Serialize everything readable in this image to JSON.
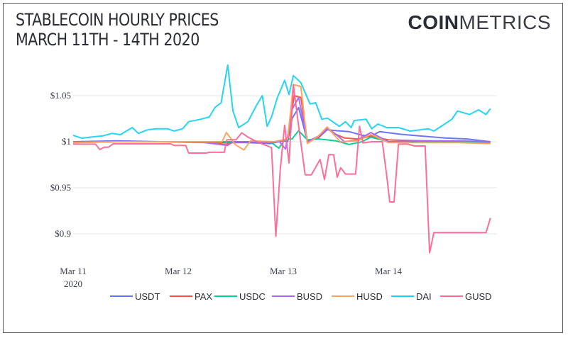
{
  "header": {
    "title_line1": "STABLECOIN HOURLY PRICES",
    "title_line2": "MARCH 11TH - 14TH 2020",
    "logo_bold": "COIN",
    "logo_light": "METRICS"
  },
  "chart_data": {
    "type": "line",
    "title": "STABLECOIN HOURLY PRICES MARCH 11TH - 14TH 2020",
    "xlabel": "",
    "ylabel": "",
    "x_unit": "hours since Mar 11 2020 00:00",
    "xlim": [
      0,
      96
    ],
    "ylim": [
      0.872,
      1.09
    ],
    "grid": true,
    "legend_placement": "bottom",
    "x_ticks": [
      {
        "value": 0,
        "label": "Mar 11",
        "sublabel": "2020"
      },
      {
        "value": 24,
        "label": "Mar 12"
      },
      {
        "value": 48,
        "label": "Mar 13"
      },
      {
        "value": 72,
        "label": "Mar 14"
      }
    ],
    "y_ticks": [
      {
        "value": 1.05,
        "label": "$1.05"
      },
      {
        "value": 1.0,
        "label": "$1"
      },
      {
        "value": 0.95,
        "label": "$0.95"
      },
      {
        "value": 0.9,
        "label": "$0.9"
      }
    ],
    "series": [
      {
        "name": "USDT",
        "color": "#636efa",
        "points": [
          [
            0,
            1.0
          ],
          [
            10,
            1.001
          ],
          [
            20,
            1.0
          ],
          [
            30,
            1.0
          ],
          [
            35,
            0.999
          ],
          [
            40,
            0.999
          ],
          [
            45,
            0.998
          ],
          [
            48,
            1.001
          ],
          [
            49,
            1.0
          ],
          [
            50,
            1.025
          ],
          [
            51.5,
            1.037
          ],
          [
            53.5,
            1.001
          ],
          [
            56,
            1.004
          ],
          [
            58,
            1.013
          ],
          [
            60,
            1.012
          ],
          [
            63,
            1.011
          ],
          [
            66,
            1.007
          ],
          [
            68,
            1.006
          ],
          [
            70,
            1.011
          ],
          [
            75,
            1.008
          ],
          [
            80,
            1.006
          ],
          [
            85,
            1.004
          ],
          [
            90,
            1.003
          ],
          [
            95.3,
            1.0
          ]
        ]
      },
      {
        "name": "PAX",
        "color": "#ef553b",
        "points": [
          [
            0,
            0.999
          ],
          [
            10,
            1.0
          ],
          [
            20,
            1.0
          ],
          [
            30,
            1.0
          ],
          [
            35,
            0.997
          ],
          [
            36,
            0.999
          ],
          [
            40,
            1.0
          ],
          [
            46,
            1.0
          ],
          [
            49,
            1.003
          ],
          [
            50.5,
            1.05
          ],
          [
            52,
            1.048
          ],
          [
            53.5,
            1.0
          ],
          [
            56,
            1.005
          ],
          [
            58,
            1.015
          ],
          [
            60,
            1.008
          ],
          [
            62,
            1.004
          ],
          [
            65,
            1.003
          ],
          [
            68,
            1.006
          ],
          [
            72,
            1.002
          ],
          [
            80,
            1.001
          ],
          [
            88,
            1.0
          ],
          [
            95.3,
            0.999
          ]
        ]
      },
      {
        "name": "USDC",
        "color": "#00cc96",
        "points": [
          [
            0,
            1.0
          ],
          [
            10,
            1.0
          ],
          [
            20,
            1.0
          ],
          [
            30,
            1.0
          ],
          [
            35,
            1.0
          ],
          [
            40,
            1.0
          ],
          [
            45,
            1.0
          ],
          [
            47,
            0.993
          ],
          [
            48.5,
            1.003
          ],
          [
            50,
            1.003
          ],
          [
            51.5,
            1.012
          ],
          [
            53.5,
            1.002
          ],
          [
            56,
            1.003
          ],
          [
            58,
            1.002
          ],
          [
            60,
            1.001
          ],
          [
            63,
            0.997
          ],
          [
            66,
            1.0
          ],
          [
            68,
            1.005
          ],
          [
            72,
            1.0
          ],
          [
            80,
            1.0
          ],
          [
            88,
            1.0
          ],
          [
            95.3,
            1.0
          ]
        ]
      },
      {
        "name": "BUSD",
        "color": "#ab63fa",
        "points": [
          [
            0,
            1.0
          ],
          [
            10,
            1.0
          ],
          [
            20,
            1.0
          ],
          [
            30,
            0.999
          ],
          [
            35.3,
            0.996
          ],
          [
            36.5,
            1.0
          ],
          [
            40,
            1.0
          ],
          [
            45,
            0.999
          ],
          [
            47,
            1.001
          ],
          [
            48.5,
            0.992
          ],
          [
            50,
            1.035
          ],
          [
            51.5,
            1.048
          ],
          [
            53.5,
            1.0
          ],
          [
            56,
            1.006
          ],
          [
            58,
            1.014
          ],
          [
            60,
            1.008
          ],
          [
            62,
            1.0
          ],
          [
            65,
            1.002
          ],
          [
            68,
            1.01
          ],
          [
            72,
            1.0
          ],
          [
            80,
            1.001
          ],
          [
            88,
            1.001
          ],
          [
            95.3,
            1.0
          ]
        ]
      },
      {
        "name": "HUSD",
        "color": "#ffa15a",
        "points": [
          [
            0,
            0.999
          ],
          [
            10,
            1.0
          ],
          [
            20,
            1.0
          ],
          [
            30,
            1.0
          ],
          [
            34,
            1.0
          ],
          [
            35,
            1.01
          ],
          [
            37,
            0.997
          ],
          [
            39,
            0.991
          ],
          [
            40.5,
            1.001
          ],
          [
            46,
            1.0
          ],
          [
            49,
            1.003
          ],
          [
            50.3,
            1.062
          ],
          [
            52,
            1.06
          ],
          [
            53.5,
            0.998
          ],
          [
            56,
            1.006
          ],
          [
            58,
            1.016
          ],
          [
            61,
            1.0
          ],
          [
            65,
            1.001
          ],
          [
            68,
            1.008
          ],
          [
            72,
            0.999
          ],
          [
            80,
            0.999
          ],
          [
            88,
            0.999
          ],
          [
            95.3,
            0.998
          ]
        ]
      },
      {
        "name": "DAI",
        "color": "#19d3f3",
        "points": [
          [
            0,
            1.0069
          ],
          [
            2,
            1.0038
          ],
          [
            4.1,
            1.0051
          ],
          [
            6.8,
            1.0064
          ],
          [
            8.8,
            1.009
          ],
          [
            10.8,
            1.0077
          ],
          [
            13.5,
            1.0154
          ],
          [
            14.9,
            1.009
          ],
          [
            16.9,
            1.0128
          ],
          [
            18.9,
            1.0141
          ],
          [
            21.6,
            1.0141
          ],
          [
            23,
            1.0115
          ],
          [
            25,
            1.0141
          ],
          [
            26.4,
            1.0218
          ],
          [
            29.1,
            1.0244
          ],
          [
            31.1,
            1.0269
          ],
          [
            32.4,
            1.0372
          ],
          [
            33.8,
            1.0423
          ],
          [
            35.3,
            1.0833
          ],
          [
            36.5,
            1.0333
          ],
          [
            37.8,
            1.0154
          ],
          [
            39.9,
            1.0218
          ],
          [
            41.9,
            1.0397
          ],
          [
            43.2,
            1.05
          ],
          [
            44.3,
            1.0167
          ],
          [
            45.3,
            1.0269
          ],
          [
            46.6,
            1.0474
          ],
          [
            48.3,
            1.0667
          ],
          [
            49.3,
            1.0513
          ],
          [
            50.3,
            1.0718
          ],
          [
            52,
            1.0641
          ],
          [
            54.1,
            1.041
          ],
          [
            55.4,
            1.0423
          ],
          [
            56.8,
            1.0244
          ],
          [
            58.1,
            1.0256
          ],
          [
            60.8,
            1.0167
          ],
          [
            62.2,
            1.0218
          ],
          [
            63.5,
            1.0154
          ],
          [
            64.2,
            1.0231
          ],
          [
            66.9,
            1.0244
          ],
          [
            68.2,
            1.0141
          ],
          [
            69.6,
            1.0192
          ],
          [
            71.6,
            1.0154
          ],
          [
            74.3,
            1.0154
          ],
          [
            77,
            1.0115
          ],
          [
            81.1,
            1.0141
          ],
          [
            82.4,
            1.0115
          ],
          [
            86.5,
            1.0244
          ],
          [
            87.8,
            1.0333
          ],
          [
            90.5,
            1.0295
          ],
          [
            92.6,
            1.0346
          ],
          [
            94.3,
            1.0295
          ],
          [
            95.3,
            1.0359
          ]
        ]
      },
      {
        "name": "GUSD",
        "color": "#ff6692",
        "points": [
          [
            0,
            0.9974
          ],
          [
            5.1,
            0.9974
          ],
          [
            6.1,
            0.9915
          ],
          [
            7.1,
            0.9941
          ],
          [
            8.1,
            0.9941
          ],
          [
            9.1,
            0.9977
          ],
          [
            22.3,
            0.9977
          ],
          [
            23,
            0.9959
          ],
          [
            25.7,
            0.9959
          ],
          [
            26.4,
            0.9877
          ],
          [
            30.4,
            0.9877
          ],
          [
            31.1,
            0.9885
          ],
          [
            34.5,
            0.9885
          ],
          [
            35.1,
            1.0021
          ],
          [
            37.2,
            1.0021
          ],
          [
            38.5,
            1.0097
          ],
          [
            39.9,
            1.0051
          ],
          [
            41.9,
            1.0
          ],
          [
            45.3,
            0.9936
          ],
          [
            46.3,
            0.8974
          ],
          [
            47.3,
            0.9697
          ],
          [
            48.3,
            1.018
          ],
          [
            49.3,
            0.9769
          ],
          [
            50.3,
            1.0615
          ],
          [
            51.4,
            1.0205
          ],
          [
            53,
            0.9641
          ],
          [
            54.4,
            0.9641
          ],
          [
            56.4,
            0.9808
          ],
          [
            57.4,
            0.959
          ],
          [
            58.4,
            0.9859
          ],
          [
            59.5,
            0.9859
          ],
          [
            60.3,
            0.9615
          ],
          [
            61.1,
            0.9718
          ],
          [
            62.2,
            0.9649
          ],
          [
            64.5,
            0.9649
          ],
          [
            65.4,
            1.0167
          ],
          [
            66.2,
            0.9987
          ],
          [
            68.2,
            1.0
          ],
          [
            70.6,
            1.0
          ],
          [
            71.6,
            0.9641
          ],
          [
            72.3,
            0.9346
          ],
          [
            73.3,
            0.9346
          ],
          [
            74.3,
            0.9974
          ],
          [
            76.4,
            0.9974
          ],
          [
            78,
            0.9954
          ],
          [
            80.4,
            0.9954
          ],
          [
            81.4,
            0.8795
          ],
          [
            82.4,
            0.9013
          ],
          [
            94.3,
            0.9013
          ],
          [
            95.3,
            0.9172
          ]
        ]
      }
    ]
  }
}
